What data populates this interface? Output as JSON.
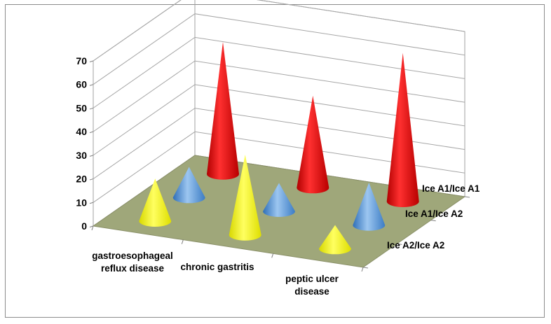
{
  "chart_data": {
    "type": "3d-cone",
    "title": "",
    "xlabel": "",
    "ylabel": "",
    "ylim": [
      0,
      70
    ],
    "y_ticks": [
      "0",
      "10",
      "20",
      "30",
      "40",
      "50",
      "60",
      "70"
    ],
    "categories": [
      "gastroesophageal reflux disease",
      "chronic gastritis",
      "peptic ulcer disease"
    ],
    "category_lines": [
      [
        "gastroesophageal",
        "reflux disease"
      ],
      [
        "chronic gastritis"
      ],
      [
        "peptic ulcer",
        "disease"
      ]
    ],
    "depth_labels": [
      "Ice A1/Ice A1",
      "Ice A1/Ice A2",
      "Ice A2/Ice A2"
    ],
    "series": [
      {
        "values": [
          56,
          39,
          63
        ],
        "color": "#e00000"
      },
      {
        "values": [
          13,
          12,
          18
        ],
        "color": "#4f8fd6"
      },
      {
        "values": [
          18,
          34,
          10
        ],
        "color": "#f2f200"
      }
    ],
    "grid": true,
    "floor_color": "#9fa77a"
  }
}
